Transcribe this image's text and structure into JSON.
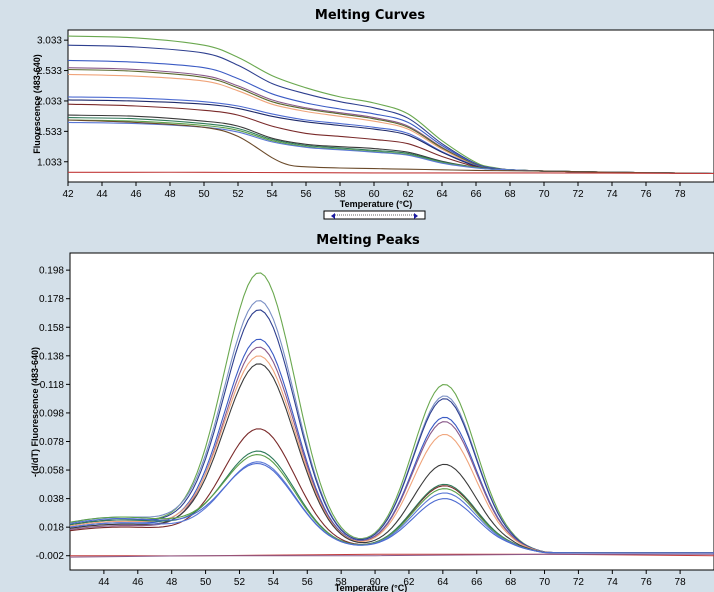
{
  "chart_data": [
    {
      "type": "line",
      "title": "Melting Curves",
      "xlabel": "Temperature (°C)",
      "ylabel": "Fluorescence (483-640)",
      "xlim": [
        42,
        80
      ],
      "ylim": [
        0.7,
        3.2
      ],
      "x_ticks": [
        "42",
        "44",
        "46",
        "48",
        "50",
        "52",
        "54",
        "56",
        "58",
        "60",
        "62",
        "64",
        "66",
        "68",
        "70",
        "72",
        "74",
        "76",
        "78"
      ],
      "y_ticks": [
        "3.033",
        "2.533",
        "2.033",
        "1.533",
        "1.033"
      ],
      "y_tick_values": [
        3.033,
        2.533,
        2.033,
        1.533,
        1.033
      ],
      "grid": false,
      "series": [
        {
          "color": "#6aa84f",
          "values_x": [
            42,
            46,
            50,
            52,
            54,
            56,
            58,
            60,
            62,
            64,
            66,
            67,
            68,
            70,
            74,
            80
          ],
          "values": [
            3.1,
            3.07,
            2.95,
            2.75,
            2.45,
            2.25,
            2.1,
            2.0,
            1.82,
            1.38,
            1.02,
            0.94,
            0.9,
            0.88,
            0.86,
            0.84
          ]
        },
        {
          "color": "#2e3f8f",
          "values_x": [
            42,
            46,
            50,
            52,
            54,
            56,
            58,
            60,
            62,
            64,
            66,
            67,
            68,
            70,
            74,
            80
          ],
          "values": [
            2.95,
            2.92,
            2.82,
            2.62,
            2.32,
            2.15,
            2.02,
            1.92,
            1.75,
            1.33,
            1.0,
            0.93,
            0.9,
            0.88,
            0.86,
            0.84
          ]
        },
        {
          "color": "#3b5bc4",
          "values_x": [
            42,
            46,
            50,
            52,
            54,
            56,
            58,
            60,
            62,
            64,
            66,
            67,
            68,
            70,
            74,
            80
          ],
          "values": [
            2.7,
            2.67,
            2.58,
            2.4,
            2.15,
            2.0,
            1.9,
            1.82,
            1.68,
            1.3,
            0.99,
            0.93,
            0.9,
            0.88,
            0.86,
            0.84
          ]
        },
        {
          "color": "#8a5a8a",
          "values_x": [
            42,
            46,
            50,
            52,
            54,
            56,
            58,
            60,
            62,
            64,
            66,
            67,
            68,
            70,
            74,
            80
          ],
          "values": [
            2.58,
            2.55,
            2.45,
            2.28,
            2.05,
            1.92,
            1.84,
            1.76,
            1.62,
            1.27,
            0.98,
            0.92,
            0.9,
            0.88,
            0.86,
            0.84
          ]
        },
        {
          "color": "#5b6a2e",
          "values_x": [
            42,
            46,
            50,
            52,
            54,
            56,
            58,
            60,
            62,
            64,
            66,
            67,
            68,
            70,
            74,
            80
          ],
          "values": [
            2.55,
            2.52,
            2.42,
            2.25,
            2.02,
            1.9,
            1.82,
            1.74,
            1.6,
            1.26,
            0.98,
            0.92,
            0.9,
            0.88,
            0.86,
            0.84
          ]
        },
        {
          "color": "#f0a47a",
          "values_x": [
            42,
            46,
            50,
            52,
            54,
            56,
            58,
            60,
            62,
            64,
            66,
            67,
            68,
            70,
            74,
            80
          ],
          "values": [
            2.47,
            2.44,
            2.36,
            2.2,
            1.98,
            1.86,
            1.78,
            1.7,
            1.57,
            1.24,
            0.97,
            0.92,
            0.9,
            0.88,
            0.86,
            0.84
          ]
        },
        {
          "color": "#4d6bd1",
          "values_x": [
            42,
            46,
            50,
            52,
            54,
            56,
            58,
            60,
            62,
            64,
            66,
            67,
            68,
            70,
            74,
            80
          ],
          "values": [
            2.1,
            2.08,
            2.02,
            1.95,
            1.82,
            1.72,
            1.66,
            1.6,
            1.5,
            1.2,
            0.97,
            0.92,
            0.9,
            0.88,
            0.86,
            0.84
          ]
        },
        {
          "color": "#1e2a6a",
          "values_x": [
            42,
            46,
            50,
            52,
            54,
            56,
            58,
            60,
            62,
            64,
            66,
            67,
            68,
            70,
            74,
            80
          ],
          "values": [
            2.05,
            2.03,
            1.98,
            1.91,
            1.78,
            1.69,
            1.63,
            1.57,
            1.47,
            1.19,
            0.96,
            0.92,
            0.9,
            0.88,
            0.86,
            0.84
          ]
        },
        {
          "color": "#7a2a2a",
          "values_x": [
            42,
            46,
            50,
            52,
            54,
            56,
            58,
            60,
            62,
            64,
            66,
            67,
            68,
            70,
            74,
            80
          ],
          "values": [
            1.98,
            1.95,
            1.88,
            1.8,
            1.62,
            1.5,
            1.45,
            1.4,
            1.33,
            1.12,
            0.95,
            0.91,
            0.9,
            0.88,
            0.86,
            0.84
          ]
        },
        {
          "color": "#3a3a3a",
          "values_x": [
            42,
            46,
            50,
            52,
            54,
            56,
            58,
            60,
            62,
            64,
            66,
            67,
            68,
            70,
            74,
            80
          ],
          "values": [
            1.8,
            1.78,
            1.7,
            1.62,
            1.42,
            1.32,
            1.28,
            1.25,
            1.19,
            1.04,
            0.94,
            0.91,
            0.9,
            0.88,
            0.86,
            0.84
          ]
        },
        {
          "color": "#2f7a5a",
          "values_x": [
            42,
            46,
            50,
            52,
            54,
            56,
            58,
            60,
            62,
            64,
            66,
            67,
            68,
            70,
            74,
            80
          ],
          "values": [
            1.76,
            1.74,
            1.66,
            1.58,
            1.4,
            1.3,
            1.26,
            1.22,
            1.17,
            1.03,
            0.94,
            0.91,
            0.9,
            0.88,
            0.86,
            0.84
          ]
        },
        {
          "color": "#5ca04a",
          "values_x": [
            42,
            46,
            50,
            52,
            54,
            56,
            58,
            60,
            62,
            64,
            66,
            67,
            68,
            70,
            74,
            80
          ],
          "values": [
            1.72,
            1.7,
            1.63,
            1.55,
            1.38,
            1.28,
            1.24,
            1.2,
            1.15,
            1.02,
            0.94,
            0.91,
            0.9,
            0.88,
            0.86,
            0.84
          ]
        },
        {
          "color": "#5b78d6",
          "values_x": [
            42,
            46,
            50,
            52,
            54,
            56,
            58,
            60,
            62,
            64,
            66,
            67,
            68,
            70,
            74,
            80
          ],
          "values": [
            1.68,
            1.66,
            1.6,
            1.52,
            1.36,
            1.27,
            1.23,
            1.19,
            1.14,
            1.01,
            0.93,
            0.91,
            0.9,
            0.88,
            0.86,
            0.84
          ]
        },
        {
          "color": "#6b4a2a",
          "values_x": [
            42,
            46,
            50,
            52,
            54,
            55,
            56,
            58,
            60,
            62,
            64,
            66,
            70,
            74,
            80
          ],
          "values": [
            1.72,
            1.68,
            1.6,
            1.45,
            1.1,
            0.98,
            0.95,
            0.93,
            0.92,
            0.91,
            0.9,
            0.89,
            0.88,
            0.86,
            0.84
          ]
        },
        {
          "color": "#c23b3b",
          "values_x": [
            42,
            50,
            60,
            70,
            80
          ],
          "values": [
            0.86,
            0.86,
            0.85,
            0.85,
            0.84
          ]
        }
      ]
    },
    {
      "type": "line",
      "title": "Melting Peaks",
      "xlabel": "Temperature (°C)",
      "ylabel": "-(d/dT) Fluorescence (483-640)",
      "xlim": [
        42,
        80
      ],
      "ylim": [
        -0.012,
        0.21
      ],
      "x_ticks": [
        "44",
        "46",
        "48",
        "50",
        "52",
        "54",
        "56",
        "58",
        "60",
        "62",
        "64",
        "66",
        "68",
        "70",
        "72",
        "74",
        "76",
        "78"
      ],
      "y_ticks": [
        "0.198",
        "0.178",
        "0.158",
        "0.138",
        "0.118",
        "0.098",
        "0.078",
        "0.058",
        "0.038",
        "0.018",
        "-0.002"
      ],
      "y_tick_values": [
        0.198,
        0.178,
        0.158,
        0.138,
        0.118,
        0.098,
        0.078,
        0.058,
        0.038,
        0.018,
        -0.002
      ],
      "grid": false,
      "peak_series": [
        {
          "color": "#6aa84f",
          "base": 0.02,
          "p1": 0.198,
          "p2": 0.123
        },
        {
          "color": "#7a8fc4",
          "base": 0.022,
          "p1": 0.178,
          "p2": 0.115
        },
        {
          "color": "#2e3f8f",
          "base": 0.02,
          "p1": 0.172,
          "p2": 0.113
        },
        {
          "color": "#3b5bc4",
          "base": 0.018,
          "p1": 0.152,
          "p2": 0.1
        },
        {
          "color": "#8a5a8a",
          "base": 0.016,
          "p1": 0.147,
          "p2": 0.097
        },
        {
          "color": "#f0a47a",
          "base": 0.019,
          "p1": 0.14,
          "p2": 0.088
        },
        {
          "color": "#3a3a3a",
          "base": 0.017,
          "p1": 0.135,
          "p2": 0.067
        },
        {
          "color": "#7a2a2a",
          "base": 0.015,
          "p1": 0.09,
          "p2": 0.052
        },
        {
          "color": "#2f7a5a",
          "base": 0.02,
          "p1": 0.073,
          "p2": 0.053
        },
        {
          "color": "#5ca04a",
          "base": 0.022,
          "p1": 0.07,
          "p2": 0.05
        },
        {
          "color": "#5b78d6",
          "base": 0.018,
          "p1": 0.066,
          "p2": 0.047
        },
        {
          "color": "#4d6bd1",
          "base": 0.021,
          "p1": 0.064,
          "p2": 0.043
        }
      ],
      "flat_series": [
        {
          "color": "#c23b3b",
          "values_x": [
            42,
            50,
            60,
            70,
            80
          ],
          "values": [
            -0.002,
            -0.002,
            -0.001,
            -0.001,
            -0.002
          ]
        },
        {
          "color": "#8a5a8a",
          "values_x": [
            42,
            50,
            60,
            70,
            80
          ],
          "values": [
            -0.003,
            -0.002,
            -0.002,
            -0.001,
            -0.001
          ]
        }
      ]
    }
  ]
}
